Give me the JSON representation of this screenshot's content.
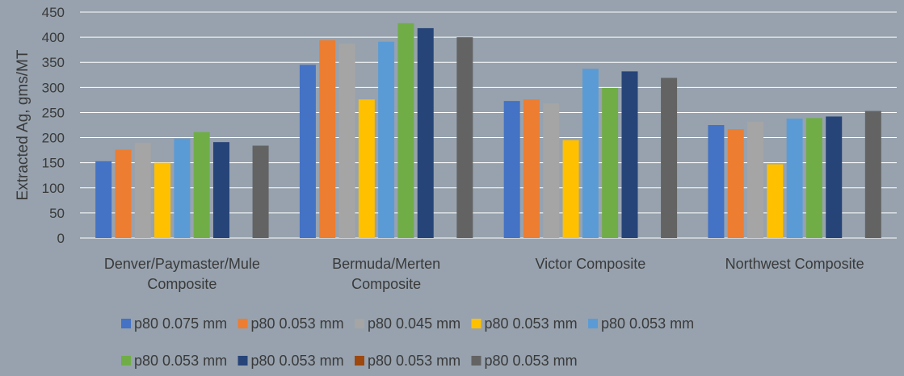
{
  "chart_data": {
    "type": "bar",
    "title": "",
    "xlabel": "",
    "ylabel": "Extracted Ag, gms/MT",
    "ylim": [
      0,
      450
    ],
    "yticks": [
      0,
      50,
      100,
      150,
      200,
      250,
      300,
      350,
      400,
      450
    ],
    "grid": true,
    "legend_position": "bottom",
    "categories": [
      "Denver/Paymaster/Mule Composite",
      "Bermuda/Merten Composite",
      "Victor Composite",
      "Northwest Composite"
    ],
    "series": [
      {
        "name": "p80 0.075 mm",
        "color": "#4472c4",
        "values": [
          153,
          345,
          273,
          225
        ]
      },
      {
        "name": "p80 0.053 mm",
        "color": "#ed7d31",
        "values": [
          176,
          394,
          276,
          217
        ]
      },
      {
        "name": "p80 0.045 mm",
        "color": "#a5a5a5",
        "values": [
          190,
          387,
          268,
          232
        ]
      },
      {
        "name": "p80 0.053 mm",
        "color": "#ffc000",
        "values": [
          150,
          276,
          195,
          147
        ]
      },
      {
        "name": "p80 0.053 mm",
        "color": "#5b9bd5",
        "values": [
          198,
          391,
          337,
          238
        ]
      },
      {
        "name": "p80 0.053 mm",
        "color": "#70ad47",
        "values": [
          211,
          428,
          299,
          239
        ]
      },
      {
        "name": "p80 0.053 mm",
        "color": "#264478",
        "values": [
          191,
          418,
          332,
          242
        ]
      },
      {
        "name": "p80 0.053 mm",
        "color": "#9e480e",
        "values": [
          null,
          null,
          null,
          null
        ]
      },
      {
        "name": "p80 0.053 mm",
        "color": "#636363",
        "values": [
          184,
          400,
          319,
          253
        ]
      }
    ]
  }
}
